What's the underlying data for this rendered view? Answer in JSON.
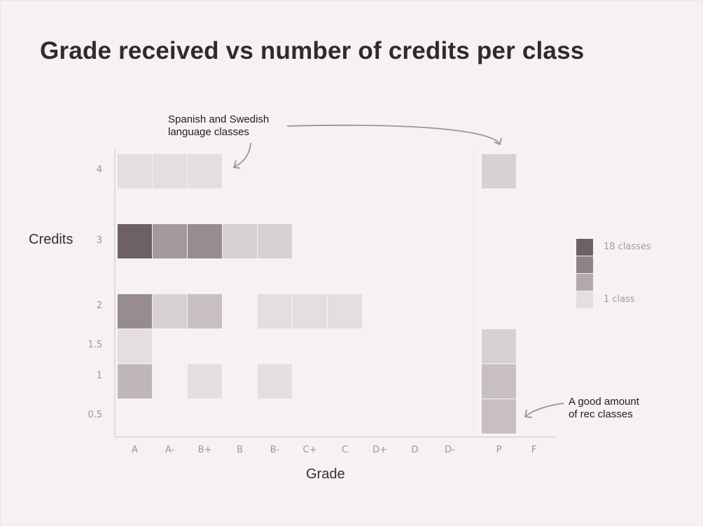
{
  "title": "Grade received vs number of credits per class",
  "chart_data": {
    "type": "heatmap",
    "title": "Grade received vs number of credits per class",
    "xlabel": "Grade",
    "ylabel": "Credits",
    "x_categories": [
      "A",
      "A-",
      "B+",
      "B",
      "B-",
      "C+",
      "C",
      "D+",
      "D",
      "D-",
      "P",
      "F"
    ],
    "y_categories": [
      "4",
      "3",
      "2",
      "1.5",
      "1",
      "0.5"
    ],
    "cells": [
      {
        "x": "A",
        "y": "4",
        "count": 1
      },
      {
        "x": "A-",
        "y": "4",
        "count": 1
      },
      {
        "x": "B+",
        "y": "4",
        "count": 1
      },
      {
        "x": "P",
        "y": "4",
        "count": 2
      },
      {
        "x": "A",
        "y": "3",
        "count": 18
      },
      {
        "x": "A-",
        "y": "3",
        "count": 9
      },
      {
        "x": "B+",
        "y": "3",
        "count": 11
      },
      {
        "x": "B",
        "y": "3",
        "count": 2
      },
      {
        "x": "B-",
        "y": "3",
        "count": 2
      },
      {
        "x": "A",
        "y": "2",
        "count": 11
      },
      {
        "x": "A-",
        "y": "2",
        "count": 2
      },
      {
        "x": "B+",
        "y": "2",
        "count": 4
      },
      {
        "x": "B-",
        "y": "2",
        "count": 1
      },
      {
        "x": "C+",
        "y": "2",
        "count": 1
      },
      {
        "x": "C",
        "y": "2",
        "count": 1
      },
      {
        "x": "A",
        "y": "1.5",
        "count": 1
      },
      {
        "x": "P",
        "y": "1.5",
        "count": 2
      },
      {
        "x": "A",
        "y": "1",
        "count": 5
      },
      {
        "x": "B+",
        "y": "1",
        "count": 1
      },
      {
        "x": "B-",
        "y": "1",
        "count": 1
      },
      {
        "x": "P",
        "y": "1",
        "count": 4
      },
      {
        "x": "P",
        "y": "0.5",
        "count": 4
      }
    ],
    "color_min": "#e4dee0",
    "color_max": "#6e6067",
    "legend": {
      "max_label": "18 classes",
      "min_label": "1 class",
      "colors": [
        "#6e6067",
        "#8e8388",
        "#b3a9ad",
        "#e4dee0"
      ]
    },
    "annotations": [
      {
        "text": "Spanish and Swedish language classes",
        "lines": [
          "Spanish and Swedish",
          "language classes"
        ]
      },
      {
        "text": "A good amount of rec classes",
        "lines": [
          "A good amount",
          "of rec classes"
        ]
      }
    ]
  }
}
